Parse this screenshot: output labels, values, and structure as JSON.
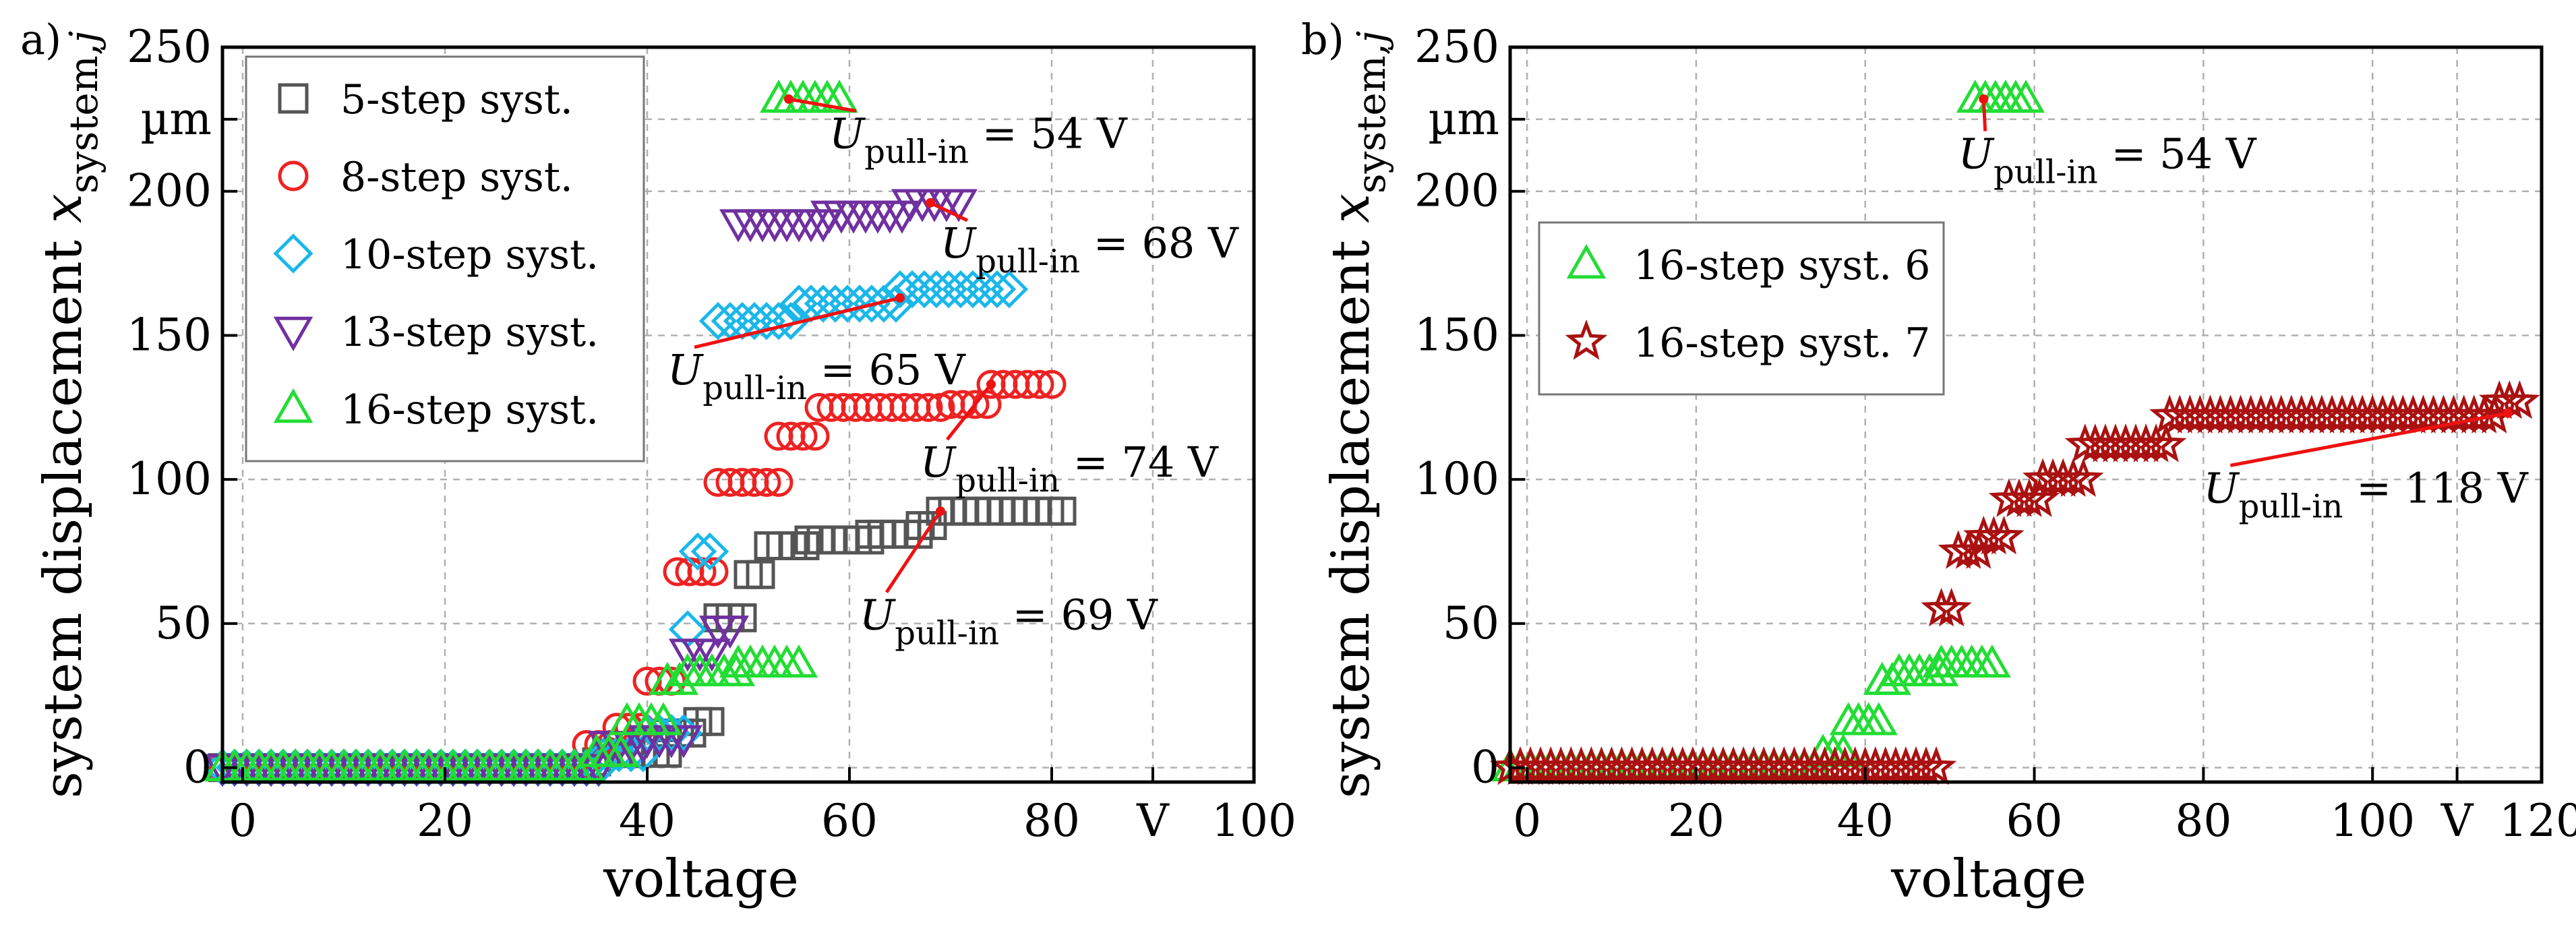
{
  "chart_data": [
    {
      "panel_label": "a)",
      "type": "scatter",
      "xlabel": "voltage",
      "ylabel_parts": {
        "main": "system displacement ",
        "var": "x",
        "sub": "system,",
        "sub_var": "j"
      },
      "xlim": [
        -2,
        100
      ],
      "ylim": [
        -5,
        250
      ],
      "x_ticks": [
        "0",
        "20",
        "40",
        "60",
        "80",
        "V",
        "100"
      ],
      "x_tick_values": [
        0,
        20,
        40,
        60,
        80,
        90,
        100
      ],
      "y_ticks": [
        "0",
        "50",
        "100",
        "150",
        "200",
        "µm",
        "250"
      ],
      "y_tick_values": [
        0,
        50,
        100,
        150,
        200,
        225,
        250
      ],
      "grid": true,
      "legend_position": "top-left",
      "series": [
        {
          "name": "5-step syst.",
          "marker": "square",
          "color": "#555555",
          "steps": [
            [
              -2,
              35,
              0
            ],
            [
              35,
              36,
              2
            ],
            [
              36,
              42,
              5
            ],
            [
              42,
              45,
              12
            ],
            [
              45,
              47,
              16
            ],
            [
              47,
              50,
              52
            ],
            [
              50,
              52,
              67
            ],
            [
              52,
              56,
              77
            ],
            [
              56,
              62,
              79
            ],
            [
              62,
              67,
              81
            ],
            [
              67,
              69,
              84
            ],
            [
              69,
              81,
              89
            ]
          ]
        },
        {
          "name": "8-step syst.",
          "marker": "circle",
          "color": "#ee2222",
          "steps": [
            [
              -2,
              34,
              0
            ],
            [
              34,
              37,
              8
            ],
            [
              37,
              40,
              14
            ],
            [
              40,
              43,
              30
            ],
            [
              43,
              47,
              68
            ],
            [
              47,
              53,
              99
            ],
            [
              53,
              57,
              115
            ],
            [
              57,
              70,
              125
            ],
            [
              70,
              74,
              126
            ],
            [
              74,
              80,
              133
            ]
          ]
        },
        {
          "name": "10-step syst.",
          "marker": "diamond",
          "color": "#1ab7ea",
          "steps": [
            [
              -2,
              36,
              0
            ],
            [
              36,
              40,
              5
            ],
            [
              40,
              44,
              12
            ],
            [
              44,
              45,
              48
            ],
            [
              45,
              47,
              75
            ],
            [
              47,
              55,
              155
            ],
            [
              55,
              65,
              161
            ],
            [
              65,
              76,
              166
            ]
          ]
        },
        {
          "name": "13-step syst.",
          "marker": "triangle-down",
          "color": "#7030a0",
          "steps": [
            [
              -2,
              36,
              0
            ],
            [
              36,
              40,
              8
            ],
            [
              40,
              44,
              10
            ],
            [
              44,
              47,
              40
            ],
            [
              47,
              49,
              48
            ],
            [
              49,
              58,
              189
            ],
            [
              58,
              66,
              192
            ],
            [
              66,
              71,
              196
            ]
          ]
        },
        {
          "name": "16-step syst.",
          "marker": "triangle-up",
          "color": "#22dd33",
          "steps": [
            [
              -2,
              35,
              0
            ],
            [
              35,
              38,
              5
            ],
            [
              38,
              42,
              16
            ],
            [
              42,
              44,
              30
            ],
            [
              44,
              49,
              33
            ],
            [
              49,
              56,
              36
            ],
            [
              53,
              59,
              232
            ]
          ]
        }
      ],
      "annotations": [
        {
          "label_main": "U",
          "label_sub": "pull-in",
          "label_rest": " = 54 V",
          "point": [
            54,
            232
          ],
          "text_pos": [
            58,
            215
          ]
        },
        {
          "label_main": "U",
          "label_sub": "pull-in",
          "label_rest": " = 68 V",
          "point": [
            68,
            196
          ],
          "text_pos": [
            69,
            177
          ]
        },
        {
          "label_main": "U",
          "label_sub": "pull-in",
          "label_rest": " = 65 V",
          "point": [
            65,
            163
          ],
          "text_pos": [
            42,
            133
          ]
        },
        {
          "label_main": "U",
          "label_sub": "pull-in",
          "label_rest": " = 74 V",
          "point": [
            74,
            133
          ],
          "text_pos": [
            67,
            101
          ]
        },
        {
          "label_main": "U",
          "label_sub": "pull-in",
          "label_rest": " = 69 V",
          "point": [
            69,
            89
          ],
          "text_pos": [
            61,
            48
          ]
        }
      ]
    },
    {
      "panel_label": "b)",
      "type": "scatter",
      "xlabel": "voltage",
      "ylabel_parts": {
        "main": "system displacement ",
        "var": "x",
        "sub": "system,",
        "sub_var": "j"
      },
      "xlim": [
        -2,
        120
      ],
      "ylim": [
        -5,
        250
      ],
      "x_ticks": [
        "0",
        "20",
        "40",
        "60",
        "80",
        "100",
        "V",
        "120"
      ],
      "x_tick_values": [
        0,
        20,
        40,
        60,
        80,
        100,
        110,
        120
      ],
      "y_ticks": [
        "0",
        "50",
        "100",
        "150",
        "200",
        "µm",
        "250"
      ],
      "y_tick_values": [
        0,
        50,
        100,
        150,
        200,
        225,
        250
      ],
      "grid": true,
      "legend_position": "top-left",
      "series": [
        {
          "name": "16-step syst. 6",
          "marker": "triangle-up",
          "color": "#22dd33",
          "steps": [
            [
              -2,
              35,
              0
            ],
            [
              35,
              38,
              5
            ],
            [
              38,
              42,
              16
            ],
            [
              42,
              44,
              30
            ],
            [
              44,
              49,
              33
            ],
            [
              49,
              56,
              36
            ],
            [
              53,
              59,
              232
            ]
          ]
        },
        {
          "name": "16-step syst. 7",
          "marker": "star",
          "color": "#aa1111",
          "steps": [
            [
              -2,
              49,
              0
            ],
            [
              49,
              51,
              55
            ],
            [
              51,
              54,
              75
            ],
            [
              54,
              57,
              80
            ],
            [
              57,
              61,
              93
            ],
            [
              61,
              66,
              100
            ],
            [
              66,
              76,
              112
            ],
            [
              76,
              115,
              122
            ],
            [
              115,
              118,
              127
            ]
          ]
        }
      ],
      "annotations": [
        {
          "label_main": "U",
          "label_sub": "pull-in",
          "label_rest": " = 54 V",
          "point": [
            54,
            232
          ],
          "text_pos": [
            51,
            208
          ]
        },
        {
          "label_main": "U",
          "label_sub": "pull-in",
          "label_rest": " = 118 V",
          "point": [
            116,
            123
          ],
          "text_pos": [
            80,
            92
          ]
        }
      ]
    }
  ]
}
